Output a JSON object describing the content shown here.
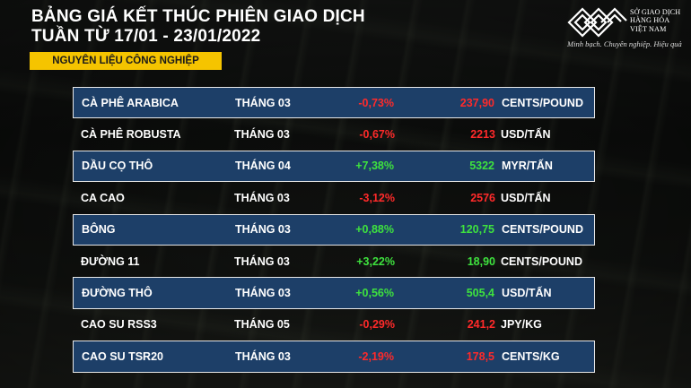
{
  "header": {
    "title_line1": "BẢNG GIÁ KẾT THÚC PHIÊN GIAO DỊCH",
    "title_line2": "TUẦN TỪ 17/01 - 23/01/2022",
    "category": "NGUYÊN LIỆU CÔNG NGHIỆP"
  },
  "logo": {
    "line1": "SỞ GIAO DỊCH",
    "line2": "HÀNG HÓA",
    "line3": "VIỆT NAM",
    "slogan": "Minh bạch. Chuyên nghiệp. Hiệu quả"
  },
  "colors": {
    "up": "#3ee23e",
    "down": "#ff2a2a",
    "band": "#1d3f68",
    "badge": "#f5c400"
  },
  "rows": [
    {
      "name": "CÀ PHÊ ARABICA",
      "month": "THÁNG 03",
      "change": "-0,73%",
      "price": "237,90",
      "unit": "CENTS/POUND",
      "dir": "down"
    },
    {
      "name": "CÀ PHÊ ROBUSTA",
      "month": "THÁNG 03",
      "change": "-0,67%",
      "price": "2213",
      "unit": "USD/TẤN",
      "dir": "down"
    },
    {
      "name": "DẦU CỌ THÔ",
      "month": "THÁNG 04",
      "change": "+7,38%",
      "price": "5322",
      "unit": "MYR/TẤN",
      "dir": "up"
    },
    {
      "name": "CA CAO",
      "month": "THÁNG 03",
      "change": "-3,12%",
      "price": "2576",
      "unit": "USD/TẤN",
      "dir": "down"
    },
    {
      "name": "BÔNG",
      "month": "THÁNG 03",
      "change": "+0,88%",
      "price": "120,75",
      "unit": "CENTS/POUND",
      "dir": "up"
    },
    {
      "name": "ĐƯỜNG 11",
      "month": "THÁNG 03",
      "change": "+3,22%",
      "price": "18,90",
      "unit": "CENTS/POUND",
      "dir": "up"
    },
    {
      "name": "ĐƯỜNG THÔ",
      "month": "THÁNG 03",
      "change": "+0,56%",
      "price": "505,4",
      "unit": "USD/TẤN",
      "dir": "up"
    },
    {
      "name": "CAO SU RSS3",
      "month": "THÁNG 05",
      "change": "-0,29%",
      "price": "241,2",
      "unit": "JPY/KG",
      "dir": "down"
    },
    {
      "name": "CAO SU TSR20",
      "month": "THÁNG 03",
      "change": "-2,19%",
      "price": "178,5",
      "unit": "CENTS/KG",
      "dir": "down"
    }
  ]
}
